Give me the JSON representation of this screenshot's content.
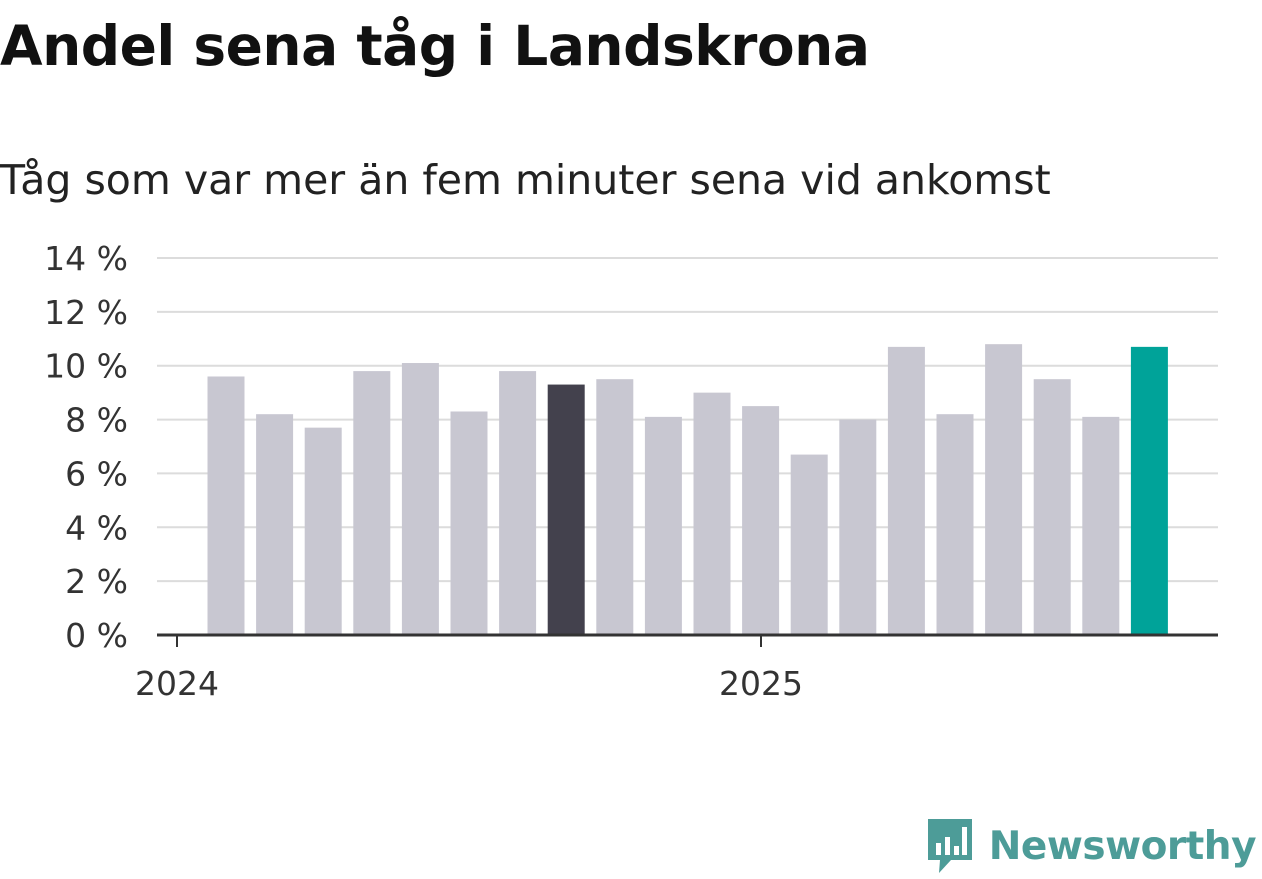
{
  "header": {
    "title": "Andel sena tåg i Landskrona",
    "subtitle": "Tåg som var mer än fem minuter sena vid ankomst"
  },
  "brand": {
    "name": "Newsworthy",
    "icon": "newsworthy-logo-icon",
    "color": "#4d9c98"
  },
  "colors": {
    "bar_default": "#c8c7d1",
    "bar_highlight_dark": "#43414d",
    "bar_highlight_latest": "#00a399",
    "gridline": "#dcdcdc",
    "axis": "#333333"
  },
  "chart_data": {
    "type": "bar",
    "title": "Andel sena tåg i Landskrona",
    "subtitle": "Tåg som var mer än fem minuter sena vid ankomst",
    "xlabel": "",
    "ylabel": "",
    "x_tick_labels": [
      "2024",
      "2025"
    ],
    "y_ticks": [
      0,
      2,
      4,
      6,
      8,
      10,
      12,
      14
    ],
    "y_tick_labels": [
      "0 %",
      "2 %",
      "4 %",
      "6 %",
      "8 %",
      "10 %",
      "12 %",
      "14 %"
    ],
    "ylim": [
      0,
      14
    ],
    "grid": true,
    "legend": "none",
    "categories": [
      "2024-01",
      "2024-02",
      "2024-03",
      "2024-04",
      "2024-05",
      "2024-06",
      "2024-07",
      "2024-08",
      "2024-09",
      "2024-10",
      "2024-11",
      "2024-12",
      "2025-01",
      "2025-02",
      "2025-03",
      "2025-04",
      "2025-05",
      "2025-06",
      "2025-07",
      "2025-08"
    ],
    "values": [
      9.6,
      8.2,
      7.7,
      9.8,
      10.1,
      8.3,
      9.8,
      9.3,
      9.5,
      8.1,
      9.0,
      8.5,
      6.7,
      8.0,
      10.7,
      8.2,
      10.8,
      9.5,
      8.1,
      10.7
    ],
    "highlight_dark_index": 7,
    "highlight_latest_index": 19
  }
}
